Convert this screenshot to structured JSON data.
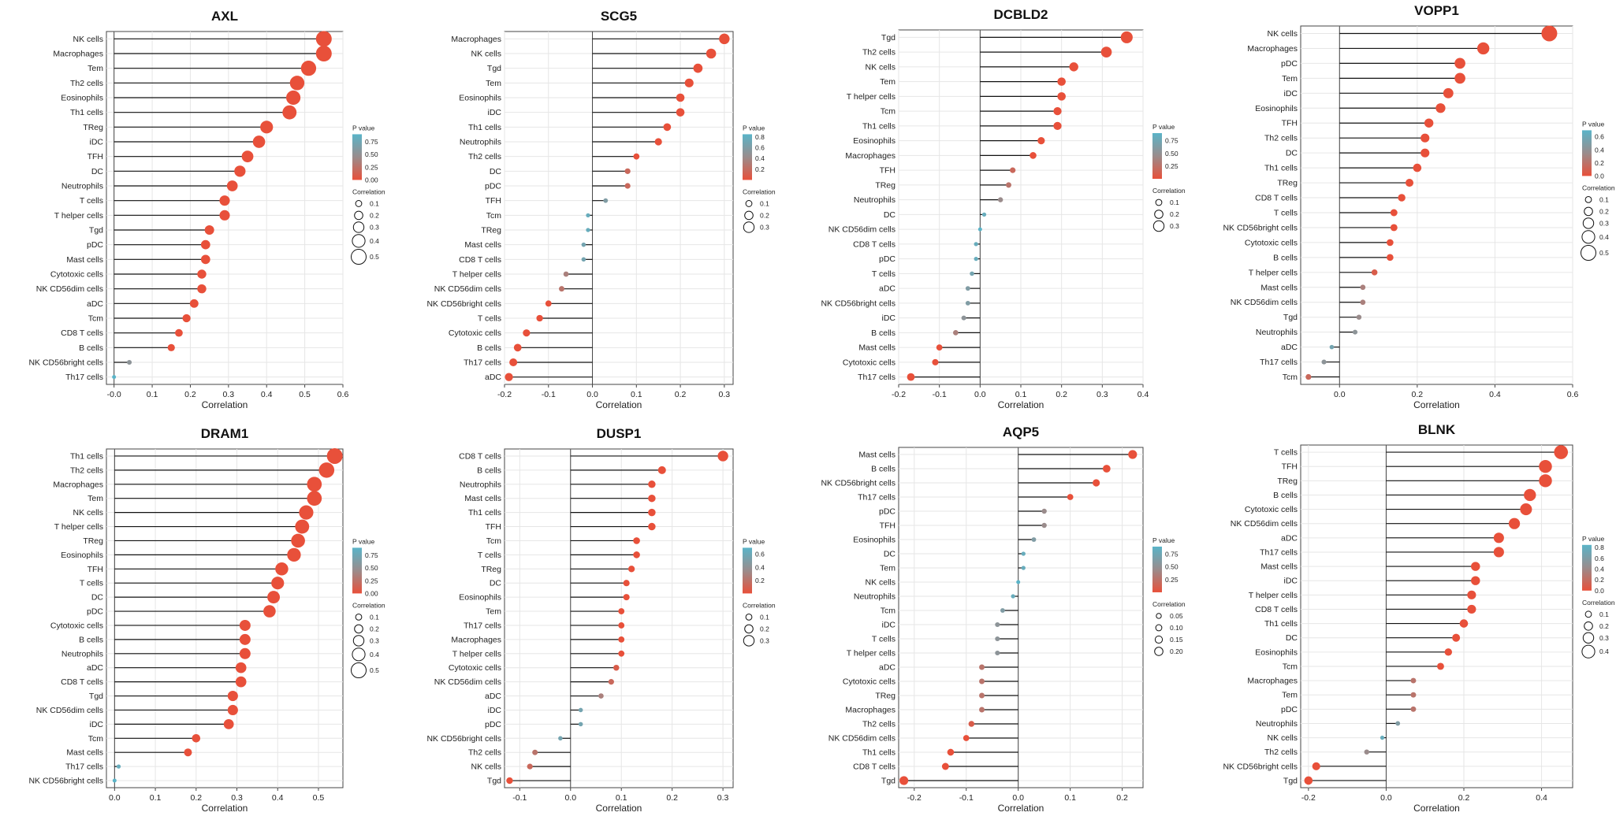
{
  "colors": {
    "high": "#e8503a",
    "mid": "#9a8c8c",
    "low": "#5ab4c8",
    "stem": "#111111",
    "grid": "#e6e6e6",
    "frame": "#444444"
  },
  "chart_data": [
    {
      "type": "lollipop",
      "title": "AXL",
      "xlabel": "Correlation",
      "xlim": [
        -0.02,
        0.6
      ],
      "xticks": [
        -0.0,
        0.1,
        0.2,
        0.3,
        0.4,
        0.5,
        0.6
      ],
      "xtick_labels": [
        "-0.0",
        "0.1",
        "0.2",
        "0.3",
        "0.4",
        "0.5",
        "0.6"
      ],
      "categories": [
        "NK cells",
        "Macrophages",
        "Tem",
        "Th2 cells",
        "Eosinophils",
        "Th1 cells",
        "TReg",
        "iDC",
        "TFH",
        "DC",
        "Neutrophils",
        "T cells",
        "T helper cells",
        "Tgd",
        "pDC",
        "Mast cells",
        "Cytotoxic cells",
        "NK CD56dim cells",
        "aDC",
        "Tcm",
        "CD8 T cells",
        "B cells",
        "NK CD56bright cells",
        "Th17 cells"
      ],
      "values": [
        0.55,
        0.55,
        0.51,
        0.48,
        0.47,
        0.46,
        0.4,
        0.38,
        0.35,
        0.33,
        0.31,
        0.29,
        0.29,
        0.25,
        0.24,
        0.24,
        0.23,
        0.23,
        0.21,
        0.19,
        0.17,
        0.15,
        0.04,
        0.0
      ],
      "pvalue_legend": {
        "title": "P value",
        "range": [
          0,
          0.9
        ],
        "ticks": [
          0.75,
          0.5,
          0.25,
          0.0
        ],
        "tick_labels": [
          "0.75",
          "0.50",
          "0.25",
          "0.00"
        ]
      },
      "size_legend": {
        "title": "Correlation",
        "values": [
          0.1,
          0.2,
          0.3,
          0.4,
          0.5
        ],
        "labels": [
          "0.1",
          "0.2",
          "0.3",
          "0.4",
          "0.5"
        ]
      }
    },
    {
      "type": "lollipop",
      "title": "SCG5",
      "xlabel": "Correlation",
      "xlim": [
        -0.2,
        0.32
      ],
      "xticks": [
        -0.2,
        -0.1,
        0.0,
        0.1,
        0.2,
        0.3
      ],
      "xtick_labels": [
        "-0.2",
        "-0.1",
        "0.0",
        "0.1",
        "0.2",
        "0.3"
      ],
      "categories": [
        "Macrophages",
        "NK cells",
        "Tgd",
        "Tem",
        "Eosinophils",
        "iDC",
        "Th1 cells",
        "Neutrophils",
        "Th2 cells",
        "DC",
        "pDC",
        "TFH",
        "Tcm",
        "TReg",
        "Mast cells",
        "CD8 T cells",
        "T helper cells",
        "NK CD56dim cells",
        "NK CD56bright cells",
        "T cells",
        "Cytotoxic cells",
        "B cells",
        "Th17 cells",
        "aDC"
      ],
      "values": [
        0.3,
        0.27,
        0.24,
        0.22,
        0.2,
        0.2,
        0.17,
        0.15,
        0.1,
        0.08,
        0.08,
        0.03,
        -0.01,
        -0.01,
        -0.02,
        -0.02,
        -0.06,
        -0.07,
        -0.1,
        -0.12,
        -0.15,
        -0.17,
        -0.18,
        -0.19
      ],
      "pvalue_legend": {
        "title": "P value",
        "range": [
          0,
          0.85
        ],
        "ticks": [
          0.8,
          0.6,
          0.4,
          0.2
        ],
        "tick_labels": [
          "0.8",
          "0.6",
          "0.4",
          "0.2"
        ]
      },
      "size_legend": {
        "title": "Correlation",
        "values": [
          0.1,
          0.2,
          0.3
        ],
        "labels": [
          "0.1",
          "0.2",
          "0.3"
        ]
      }
    },
    {
      "type": "lollipop",
      "title": "DCBLD2",
      "xlabel": "Correlation",
      "xlim": [
        -0.2,
        0.4
      ],
      "xticks": [
        -0.2,
        -0.1,
        0.0,
        0.1,
        0.2,
        0.3,
        0.4
      ],
      "xtick_labels": [
        "-0.2",
        "-0.1",
        "0.0",
        "0.1",
        "0.2",
        "0.3",
        "0.4"
      ],
      "categories": [
        "Tgd",
        "Th2 cells",
        "NK cells",
        "Tem",
        "T helper cells",
        "Tcm",
        "Th1 cells",
        "Eosinophils",
        "Macrophages",
        "TFH",
        "TReg",
        "Neutrophils",
        "DC",
        "NK CD56dim cells",
        "CD8 T cells",
        "pDC",
        "T cells",
        "aDC",
        "NK CD56bright cells",
        "iDC",
        "B cells",
        "Mast cells",
        "Cytotoxic cells",
        "Th17 cells"
      ],
      "values": [
        0.36,
        0.31,
        0.23,
        0.2,
        0.2,
        0.19,
        0.19,
        0.15,
        0.13,
        0.08,
        0.07,
        0.05,
        0.01,
        0.0,
        -0.01,
        -0.01,
        -0.02,
        -0.03,
        -0.03,
        -0.04,
        -0.06,
        -0.1,
        -0.11,
        -0.17
      ],
      "pvalue_legend": {
        "title": "P value",
        "range": [
          0,
          0.9
        ],
        "ticks": [
          0.75,
          0.5,
          0.25
        ],
        "tick_labels": [
          "0.75",
          "0.50",
          "0.25"
        ]
      },
      "size_legend": {
        "title": "Correlation",
        "values": [
          0.1,
          0.2,
          0.3
        ],
        "labels": [
          "0.1",
          "0.2",
          "0.3"
        ]
      }
    },
    {
      "type": "lollipop",
      "title": "VOPP1",
      "xlabel": "Correlation",
      "xlim": [
        -0.1,
        0.6
      ],
      "xticks": [
        0.0,
        0.2,
        0.4,
        0.6
      ],
      "xtick_labels": [
        "0.0",
        "0.2",
        "0.4",
        "0.6"
      ],
      "categories": [
        "NK cells",
        "Macrophages",
        "pDC",
        "Tem",
        "iDC",
        "Eosinophils",
        "TFH",
        "Th2 cells",
        "DC",
        "Th1 cells",
        "TReg",
        "CD8 T cells",
        "T cells",
        "NK CD56bright cells",
        "Cytotoxic cells",
        "B cells",
        "T helper cells",
        "Mast cells",
        "NK CD56dim cells",
        "Tgd",
        "Neutrophils",
        "aDC",
        "Th17 cells",
        "Tcm"
      ],
      "values": [
        0.54,
        0.37,
        0.31,
        0.31,
        0.28,
        0.26,
        0.23,
        0.22,
        0.22,
        0.2,
        0.18,
        0.16,
        0.14,
        0.14,
        0.13,
        0.13,
        0.09,
        0.06,
        0.06,
        0.05,
        0.04,
        -0.02,
        -0.04,
        -0.08
      ],
      "pvalue_legend": {
        "title": "P value",
        "range": [
          0,
          0.7
        ],
        "ticks": [
          0.6,
          0.4,
          0.2,
          0.0
        ],
        "tick_labels": [
          "0.6",
          "0.4",
          "0.2",
          "0.0"
        ]
      },
      "size_legend": {
        "title": "Correlation",
        "values": [
          0.1,
          0.2,
          0.3,
          0.4,
          0.5
        ],
        "labels": [
          "0.1",
          "0.2",
          "0.3",
          "0.4",
          "0.5"
        ]
      }
    },
    {
      "type": "lollipop",
      "title": "DRAM1",
      "xlabel": "Correlation",
      "xlim": [
        -0.02,
        0.56
      ],
      "xticks": [
        0.0,
        0.1,
        0.2,
        0.3,
        0.4,
        0.5
      ],
      "xtick_labels": [
        "0.0",
        "0.1",
        "0.2",
        "0.3",
        "0.4",
        "0.5"
      ],
      "categories": [
        "Th1 cells",
        "Th2 cells",
        "Macrophages",
        "Tem",
        "NK cells",
        "T helper cells",
        "TReg",
        "Eosinophils",
        "TFH",
        "T cells",
        "DC",
        "pDC",
        "Cytotoxic cells",
        "B cells",
        "Neutrophils",
        "aDC",
        "CD8 T cells",
        "Tgd",
        "NK CD56dim cells",
        "iDC",
        "Tcm",
        "Mast cells",
        "Th17 cells",
        "NK CD56bright cells"
      ],
      "values": [
        0.54,
        0.52,
        0.49,
        0.49,
        0.47,
        0.46,
        0.45,
        0.44,
        0.41,
        0.4,
        0.39,
        0.38,
        0.32,
        0.32,
        0.32,
        0.31,
        0.31,
        0.29,
        0.29,
        0.28,
        0.2,
        0.18,
        0.01,
        0.0
      ],
      "pvalue_legend": {
        "title": "P value",
        "range": [
          0,
          0.9
        ],
        "ticks": [
          0.75,
          0.5,
          0.25,
          0.0
        ],
        "tick_labels": [
          "0.75",
          "0.50",
          "0.25",
          "0.00"
        ]
      },
      "size_legend": {
        "title": "Correlation",
        "values": [
          0.1,
          0.2,
          0.3,
          0.4,
          0.5
        ],
        "labels": [
          "0.1",
          "0.2",
          "0.3",
          "0.4",
          "0.5"
        ]
      }
    },
    {
      "type": "lollipop",
      "title": "DUSP1",
      "xlabel": "Correlation",
      "xlim": [
        -0.13,
        0.32
      ],
      "xticks": [
        -0.1,
        0.0,
        0.1,
        0.2,
        0.3
      ],
      "xtick_labels": [
        "-0.1",
        "0.0",
        "0.1",
        "0.2",
        "0.3"
      ],
      "categories": [
        "CD8 T cells",
        "B cells",
        "Neutrophils",
        "Mast cells",
        "Th1 cells",
        "TFH",
        "Tcm",
        "T cells",
        "TReg",
        "DC",
        "Eosinophils",
        "Tem",
        "Th17 cells",
        "Macrophages",
        "T helper cells",
        "Cytotoxic cells",
        "NK CD56dim cells",
        "aDC",
        "iDC",
        "pDC",
        "NK CD56bright cells",
        "Th2 cells",
        "NK cells",
        "Tgd"
      ],
      "values": [
        0.3,
        0.18,
        0.16,
        0.16,
        0.16,
        0.16,
        0.13,
        0.13,
        0.12,
        0.11,
        0.11,
        0.1,
        0.1,
        0.1,
        0.1,
        0.09,
        0.08,
        0.06,
        0.02,
        0.02,
        -0.02,
        -0.07,
        -0.08,
        -0.12
      ],
      "pvalue_legend": {
        "title": "P value",
        "range": [
          0,
          0.7
        ],
        "ticks": [
          0.6,
          0.4,
          0.2
        ],
        "tick_labels": [
          "0.6",
          "0.4",
          "0.2"
        ]
      },
      "size_legend": {
        "title": "Correlation",
        "values": [
          0.1,
          0.2,
          0.3
        ],
        "labels": [
          "0.1",
          "0.2",
          "0.3"
        ]
      }
    },
    {
      "type": "lollipop",
      "title": "AQP5",
      "xlabel": "Correlation",
      "xlim": [
        -0.23,
        0.24
      ],
      "xticks": [
        -0.2,
        -0.1,
        0.0,
        0.1,
        0.2
      ],
      "xtick_labels": [
        "-0.2",
        "-0.1",
        "0.0",
        "0.1",
        "0.2"
      ],
      "categories": [
        "Mast cells",
        "B cells",
        "NK CD56bright cells",
        "Th17 cells",
        "pDC",
        "TFH",
        "Eosinophils",
        "DC",
        "Tem",
        "NK cells",
        "Neutrophils",
        "Tcm",
        "iDC",
        "T cells",
        "T helper cells",
        "aDC",
        "Cytotoxic cells",
        "TReg",
        "Macrophages",
        "Th2 cells",
        "NK CD56dim cells",
        "Th1 cells",
        "CD8 T cells",
        "Tgd"
      ],
      "values": [
        0.22,
        0.17,
        0.15,
        0.1,
        0.05,
        0.05,
        0.03,
        0.01,
        0.01,
        0.0,
        -0.01,
        -0.03,
        -0.04,
        -0.04,
        -0.04,
        -0.07,
        -0.07,
        -0.07,
        -0.07,
        -0.09,
        -0.1,
        -0.13,
        -0.14,
        -0.22
      ],
      "pvalue_legend": {
        "title": "P value",
        "range": [
          0,
          0.9
        ],
        "ticks": [
          0.75,
          0.5,
          0.25
        ],
        "tick_labels": [
          "0.75",
          "0.50",
          "0.25"
        ]
      },
      "size_legend": {
        "title": "Correlation",
        "values": [
          0.05,
          0.1,
          0.15,
          0.2
        ],
        "labels": [
          "0.05",
          "0.10",
          "0.15",
          "0.20"
        ]
      }
    },
    {
      "type": "lollipop",
      "title": "BLNK",
      "xlabel": "Correlation",
      "xlim": [
        -0.22,
        0.48
      ],
      "xticks": [
        -0.2,
        0.0,
        0.2,
        0.4
      ],
      "xtick_labels": [
        "-0.2",
        "0.0",
        "0.2",
        "0.4"
      ],
      "categories": [
        "T cells",
        "TFH",
        "TReg",
        "B cells",
        "Cytotoxic cells",
        "NK CD56dim cells",
        "aDC",
        "Th17 cells",
        "Mast cells",
        "iDC",
        "T helper cells",
        "CD8 T cells",
        "Th1 cells",
        "DC",
        "Eosinophils",
        "Tcm",
        "Macrophages",
        "Tem",
        "pDC",
        "Neutrophils",
        "NK cells",
        "Th2 cells",
        "NK CD56bright cells",
        "Tgd"
      ],
      "values": [
        0.45,
        0.41,
        0.41,
        0.37,
        0.36,
        0.33,
        0.29,
        0.29,
        0.23,
        0.23,
        0.22,
        0.22,
        0.2,
        0.18,
        0.16,
        0.14,
        0.07,
        0.07,
        0.07,
        0.03,
        -0.01,
        -0.05,
        -0.18,
        -0.2
      ],
      "pvalue_legend": {
        "title": "P value",
        "range": [
          0,
          0.85
        ],
        "ticks": [
          0.8,
          0.6,
          0.4,
          0.2,
          0.0
        ],
        "tick_labels": [
          "0.8",
          "0.6",
          "0.4",
          "0.2",
          "0.0"
        ]
      },
      "size_legend": {
        "title": "Correlation",
        "values": [
          0.1,
          0.2,
          0.3,
          0.4
        ],
        "labels": [
          "0.1",
          "0.2",
          "0.3",
          "0.4"
        ]
      }
    }
  ]
}
